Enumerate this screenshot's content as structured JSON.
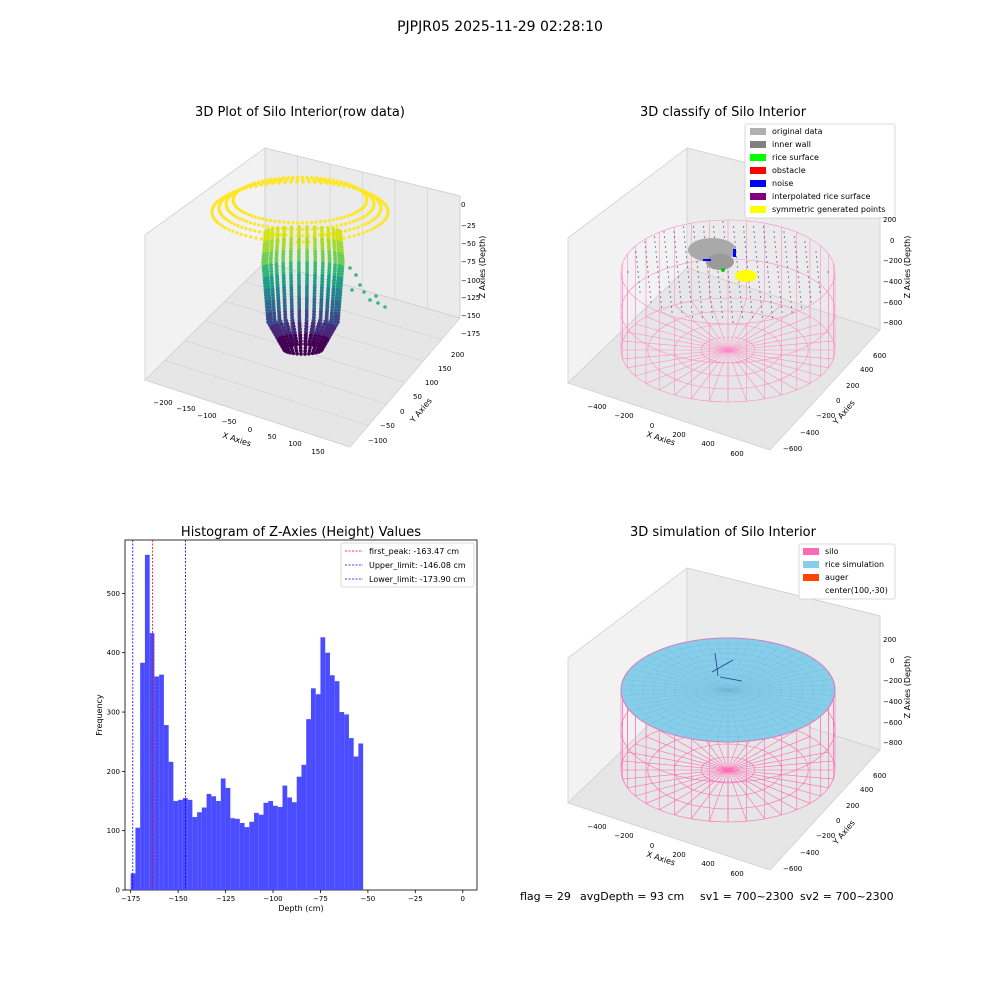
{
  "suptitle": "PJPJR05 2025-11-29 02:28:10",
  "status": {
    "flag": "flag = 29",
    "avg_depth": "avgDepth = 93 cm",
    "sv1": "sv1 = 700~2300",
    "sv2": "sv2 = 700~2300"
  },
  "chart_data": [
    {
      "type": "scatter",
      "projection": "3d",
      "title": "3D Plot of Silo Interior(row data)",
      "xlabel": "X Axies",
      "ylabel": "Y Axies",
      "zlabel": "Z Axies (Depth)",
      "xticks": [
        "−200",
        "−150",
        "−100",
        "−50",
        "0",
        "50",
        "100",
        "150"
      ],
      "yticks": [
        "−100",
        "−50",
        "0",
        "50",
        "100",
        "150",
        "200"
      ],
      "zticks": [
        "0",
        "−25",
        "−50",
        "−75",
        "−100",
        "−125",
        "−150",
        "−175"
      ],
      "colormap": "viridis",
      "description_colors": {
        "top": "#fde725",
        "mid": "#35b779",
        "bottom": "#440154"
      }
    },
    {
      "type": "scatter",
      "projection": "3d",
      "title": "3D classify of Silo Interior",
      "xlabel": "X Axies",
      "ylabel": "Y Axies",
      "zlabel": "Z Axies (Depth)",
      "xticks": [
        "−400",
        "−200",
        "0",
        "200",
        "400",
        "600"
      ],
      "yticks": [
        "−600",
        "−400",
        "−200",
        "0",
        "200",
        "400",
        "600"
      ],
      "zticks": [
        "200",
        "0",
        "−200",
        "−400",
        "−600",
        "−800"
      ],
      "legend": [
        {
          "label": "original data",
          "color": "#b0b0b0"
        },
        {
          "label": "inner wall",
          "color": "#808080"
        },
        {
          "label": "rice surface",
          "color": "#00ff00"
        },
        {
          "label": "obstacle",
          "color": "#ff0000"
        },
        {
          "label": "noise",
          "color": "#0000ff"
        },
        {
          "label": "interpolated rice surface",
          "color": "#800080"
        },
        {
          "label": "symmetric generated points",
          "color": "#ffff00"
        }
      ],
      "legend_position": "top-right"
    },
    {
      "type": "bar",
      "title": "Histogram of Z-Axies (Height) Values",
      "xlabel": "Depth (cm)",
      "ylabel": "Frequency",
      "xlim": [
        -178,
        7.5
      ],
      "ylim": [
        0,
        590
      ],
      "bin_width": 2.5,
      "bin_start": -175,
      "values": [
        28,
        105,
        383,
        565,
        433,
        360,
        363,
        278,
        216,
        150,
        152,
        155,
        152,
        123,
        131,
        139,
        162,
        158,
        150,
        188,
        172,
        121,
        120,
        113,
        106,
        115,
        130,
        127,
        147,
        150,
        142,
        140,
        176,
        156,
        148,
        191,
        211,
        288,
        340,
        330,
        426,
        400,
        362,
        352,
        300,
        296,
        256,
        225,
        247
      ],
      "bar_color": "#4b4bff",
      "xticks": [
        -175,
        -150,
        -125,
        -100,
        -75,
        -50,
        -25,
        0
      ],
      "yticks": [
        0,
        100,
        200,
        300,
        400,
        500
      ],
      "vlines": [
        {
          "label": "first_peak: -163.47 cm",
          "x": -163.47,
          "color": "#ff0000"
        },
        {
          "label": "Upper_limit: -146.08 cm",
          "x": -146.08,
          "color": "#0000ff"
        },
        {
          "label": "Lower_limit: -173.90 cm",
          "x": -173.9,
          "color": "#0000ff"
        }
      ],
      "legend_position": "top-right"
    },
    {
      "type": "scatter",
      "projection": "3d",
      "title": "3D simulation of Silo Interior",
      "xlabel": "X Axies",
      "ylabel": "Y Axies",
      "zlabel": "Z Axies (Depth)",
      "xticks": [
        "−400",
        "−200",
        "0",
        "200",
        "400",
        "600"
      ],
      "yticks": [
        "−600",
        "−400",
        "−200",
        "0",
        "200",
        "400",
        "600"
      ],
      "zticks": [
        "200",
        "0",
        "−200",
        "−400",
        "−600",
        "−800"
      ],
      "legend": [
        {
          "label": "silo",
          "color": "#ff69b4"
        },
        {
          "label": "rice simulation",
          "color": "#87ceeb"
        },
        {
          "label": "auger",
          "color": "#ff4500"
        },
        {
          "label": "center(100,-30)",
          "color": ""
        }
      ],
      "legend_position": "top-right"
    }
  ]
}
